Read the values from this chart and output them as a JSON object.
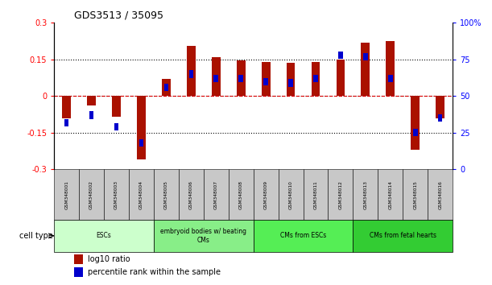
{
  "title": "GDS3513 / 35095",
  "samples": [
    "GSM348001",
    "GSM348002",
    "GSM348003",
    "GSM348004",
    "GSM348005",
    "GSM348006",
    "GSM348007",
    "GSM348008",
    "GSM348009",
    "GSM348010",
    "GSM348011",
    "GSM348012",
    "GSM348013",
    "GSM348014",
    "GSM348015",
    "GSM348016"
  ],
  "log10_ratio": [
    -0.09,
    -0.04,
    -0.085,
    -0.26,
    0.07,
    0.205,
    0.16,
    0.145,
    0.14,
    0.135,
    0.14,
    0.15,
    0.22,
    0.225,
    -0.22,
    -0.09
  ],
  "percentile_rank": [
    32,
    37,
    29,
    18,
    56,
    65,
    62,
    62,
    60,
    59,
    62,
    78,
    77,
    62,
    25,
    35
  ],
  "ylim_left": [
    -0.3,
    0.3
  ],
  "ylim_right": [
    0,
    100
  ],
  "yticks_left": [
    -0.3,
    -0.15,
    0,
    0.15,
    0.3
  ],
  "yticks_right": [
    0,
    25,
    50,
    75,
    100
  ],
  "ytick_labels_left": [
    "-0.3",
    "-0.15",
    "0",
    "0.15",
    "0.3"
  ],
  "ytick_labels_right": [
    "0",
    "25",
    "50",
    "75",
    "100%"
  ],
  "hlines_dotted": [
    -0.15,
    0.15
  ],
  "hline_zero_color": "#dd0000",
  "bar_color_red": "#aa1100",
  "bar_color_blue": "#0000cc",
  "sample_box_color": "#c8c8c8",
  "cell_type_groups": [
    {
      "label": "ESCs",
      "start": 0,
      "end": 3,
      "color": "#ccffcc"
    },
    {
      "label": "embryoid bodies w/ beating\nCMs",
      "start": 4,
      "end": 7,
      "color": "#88ee88"
    },
    {
      "label": "CMs from ESCs",
      "start": 8,
      "end": 11,
      "color": "#55ee55"
    },
    {
      "label": "CMs from fetal hearts",
      "start": 12,
      "end": 15,
      "color": "#33cc33"
    }
  ],
  "legend_items": [
    {
      "label": "log10 ratio",
      "color": "#aa1100"
    },
    {
      "label": "percentile rank within the sample",
      "color": "#0000cc"
    }
  ],
  "bar_width": 0.35,
  "blue_marker_size": 0.12,
  "cell_type_label": "cell type"
}
